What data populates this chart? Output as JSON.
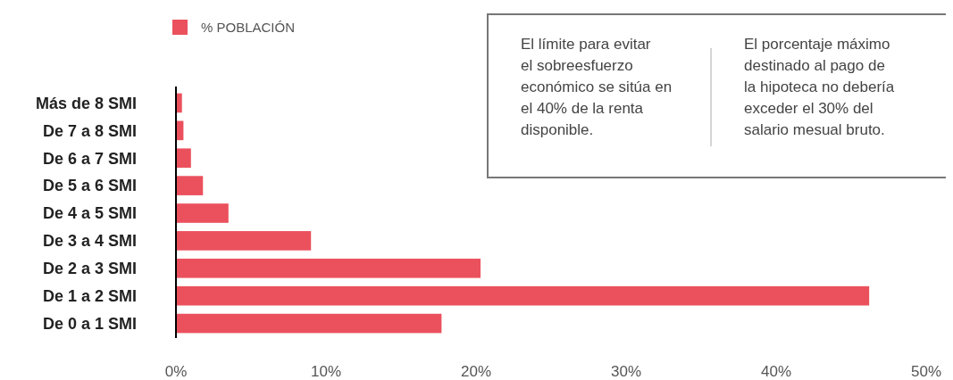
{
  "chart_data": {
    "type": "bar",
    "orientation": "horizontal",
    "categories": [
      "Más de 8 SMI",
      "De 7 a 8 SMI",
      "De 6 a 7 SMI",
      "De 5 a 6 SMI",
      "De 4 a 5 SMI",
      "De 3 a 4 SMI",
      "De 2 a 3 SMI",
      "De 1 a 2 SMI",
      "De 0 a 1 SMI"
    ],
    "series": [
      {
        "name": "% POBLACIÓN",
        "color": "#eb515d",
        "values": [
          0.4,
          0.5,
          1.0,
          1.8,
          3.5,
          9.0,
          20.3,
          46.2,
          17.7
        ]
      }
    ],
    "xlim": [
      0,
      50
    ],
    "xticks": [
      {
        "value": 0,
        "label": "0%"
      },
      {
        "value": 10,
        "label": "10%"
      },
      {
        "value": 20,
        "label": "20%"
      },
      {
        "value": 30,
        "label": "30%"
      },
      {
        "value": 40,
        "label": "40%"
      },
      {
        "value": 50,
        "label": "50%"
      }
    ],
    "grid": false,
    "legend": "top left",
    "annotations": [
      "El límite para evitar el sobreesfuerzo económico se sitúa en el 40% de la renta disponible.",
      "El porcentaje máximo destinado al pago de la hipoteca no debería exceder el 30% del salario mesual bruto."
    ]
  }
}
